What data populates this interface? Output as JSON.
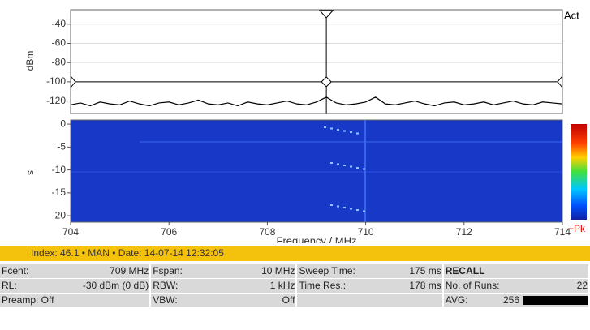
{
  "chart_data": [
    {
      "type": "line",
      "y_label": "dBm",
      "xlim": [
        704,
        714
      ],
      "ylim": [
        -133,
        -25
      ],
      "yticks": [
        -40,
        -60,
        -80,
        -100,
        -120
      ],
      "grid": true,
      "threshold": -100,
      "marker_x": 709.2,
      "color": "#000000",
      "x": [
        704,
        704.2,
        704.4,
        704.6,
        704.8,
        705,
        705.2,
        705.4,
        705.6,
        705.8,
        706,
        706.2,
        706.4,
        706.6,
        706.8,
        707,
        707.2,
        707.4,
        707.6,
        707.8,
        708,
        708.2,
        708.4,
        708.6,
        708.8,
        709,
        709.2,
        709.4,
        709.6,
        709.8,
        710,
        710.2,
        710.4,
        710.6,
        710.8,
        711,
        711.2,
        711.4,
        711.6,
        711.8,
        712,
        712.2,
        712.4,
        712.6,
        712.8,
        713,
        713.2,
        713.4,
        713.6,
        713.8,
        714
      ],
      "values": [
        -124,
        -122,
        -125,
        -121,
        -123,
        -124,
        -120,
        -123,
        -125,
        -122,
        -121,
        -124,
        -122,
        -119,
        -123,
        -124,
        -122,
        -125,
        -121,
        -123,
        -124,
        -122,
        -120,
        -123,
        -124,
        -121,
        -116,
        -122,
        -124,
        -123,
        -121,
        -116,
        -123,
        -124,
        -122,
        -120,
        -123,
        -125,
        -122,
        -121,
        -124,
        -123,
        -121,
        -124,
        -122,
        -120,
        -123,
        -124,
        -121,
        -122,
        -123
      ]
    },
    {
      "type": "heatmap",
      "y_label": "s",
      "x_label": "Frequency / MHz",
      "xlim": [
        704,
        714
      ],
      "ylim": [
        -21.4,
        0.9
      ],
      "xticks": [
        704,
        706,
        708,
        710,
        712,
        714
      ],
      "yticks": [
        0,
        -5,
        -10,
        -15,
        -20
      ]
    }
  ],
  "side_labels": {
    "top": "Act",
    "bottom": "+Pk"
  },
  "status_bar": "Index: 46.1 • MAN • Date: 14-07-14 12:32:05",
  "info": {
    "rows": [
      [
        [
          "Fcent:",
          "709 MHz"
        ],
        [
          "Fspan:",
          "10 MHz"
        ],
        [
          "Sweep Time:",
          "175 ms"
        ],
        [
          "RECALL",
          ""
        ]
      ],
      [
        [
          "RL:",
          "-30 dBm (0 dB)"
        ],
        [
          "RBW:",
          "1 kHz"
        ],
        [
          "Time Res.:",
          "178 ms"
        ],
        [
          "No. of Runs:",
          "22"
        ]
      ],
      [
        [
          "Preamp: Off",
          ""
        ],
        [
          "VBW:",
          "Off"
        ],
        [
          "",
          ""
        ],
        [
          "AVG:",
          "256"
        ]
      ]
    ]
  }
}
